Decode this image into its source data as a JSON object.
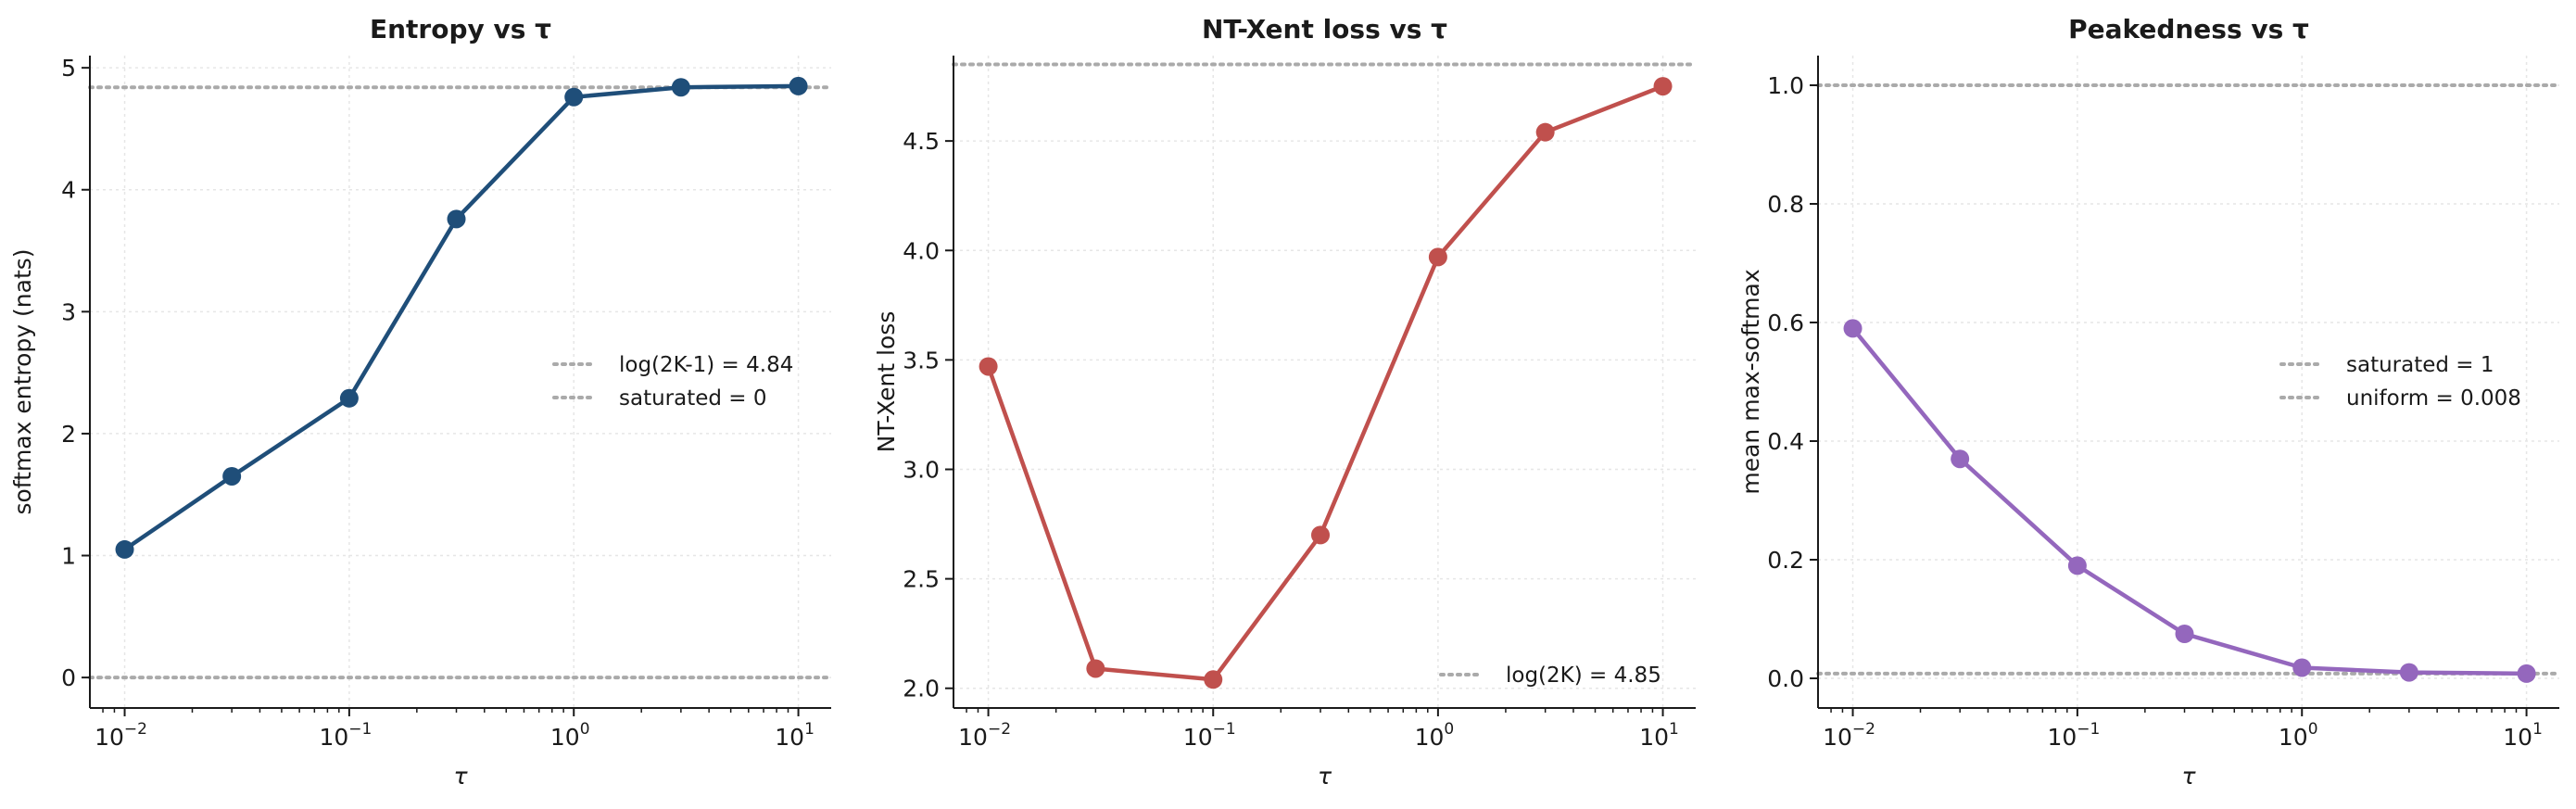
{
  "chart_data": [
    {
      "type": "line",
      "title": "Entropy vs τ",
      "xlabel": "τ",
      "ylabel": "softmax entropy (nats)",
      "x_scale": "log",
      "xlim": [
        0.007,
        14
      ],
      "ylim": [
        -0.25,
        5.1
      ],
      "xticks": [
        {
          "base": "10",
          "exp": "−2"
        },
        {
          "base": "10",
          "exp": "−1"
        },
        {
          "base": "10",
          "exp": "0"
        },
        {
          "base": "10",
          "exp": "1"
        }
      ],
      "xtick_values": [
        0.01,
        0.1,
        1,
        10
      ],
      "yticks": [
        "0",
        "1",
        "2",
        "3",
        "4",
        "5"
      ],
      "ytick_values": [
        0,
        1,
        2,
        3,
        4,
        5
      ],
      "grid": true,
      "legend_position": "center-right",
      "series": [
        {
          "color": "#1f4e79",
          "x": [
            0.01,
            0.03,
            0.1,
            0.3,
            1,
            3,
            10
          ],
          "y": [
            1.05,
            1.65,
            2.29,
            3.76,
            4.76,
            4.84,
            4.85
          ]
        }
      ],
      "reference_lines": [
        {
          "label": "log(2K-1) = 4.84",
          "y": 4.84,
          "color": "#aaaaaa"
        },
        {
          "label": "saturated = 0",
          "y": 0,
          "color": "#aaaaaa"
        }
      ]
    },
    {
      "type": "line",
      "title": "NT-Xent loss vs τ",
      "xlabel": "τ",
      "ylabel": "NT-Xent loss",
      "x_scale": "log",
      "xlim": [
        0.007,
        14
      ],
      "ylim": [
        1.91,
        4.89
      ],
      "xticks": [
        {
          "base": "10",
          "exp": "−2"
        },
        {
          "base": "10",
          "exp": "−1"
        },
        {
          "base": "10",
          "exp": "0"
        },
        {
          "base": "10",
          "exp": "1"
        }
      ],
      "xtick_values": [
        0.01,
        0.1,
        1,
        10
      ],
      "yticks": [
        "2.0",
        "2.5",
        "3.0",
        "3.5",
        "4.0",
        "4.5"
      ],
      "ytick_values": [
        2.0,
        2.5,
        3.0,
        3.5,
        4.0,
        4.5
      ],
      "grid": true,
      "legend_position": "bottom-right",
      "series": [
        {
          "color": "#c0504d",
          "x": [
            0.01,
            0.03,
            0.1,
            0.3,
            1,
            3,
            10
          ],
          "y": [
            3.47,
            2.09,
            2.04,
            2.7,
            3.97,
            4.54,
            4.75
          ]
        }
      ],
      "reference_lines": [
        {
          "label": "log(2K) = 4.85",
          "y": 4.85,
          "color": "#aaaaaa"
        }
      ]
    },
    {
      "type": "line",
      "title": "Peakedness vs τ",
      "xlabel": "τ",
      "ylabel": "mean max-softmax",
      "x_scale": "log",
      "xlim": [
        0.007,
        14
      ],
      "ylim": [
        -0.05,
        1.05
      ],
      "xticks": [
        {
          "base": "10",
          "exp": "−2"
        },
        {
          "base": "10",
          "exp": "−1"
        },
        {
          "base": "10",
          "exp": "0"
        },
        {
          "base": "10",
          "exp": "1"
        }
      ],
      "xtick_values": [
        0.01,
        0.1,
        1,
        10
      ],
      "yticks": [
        "0.0",
        "0.2",
        "0.4",
        "0.6",
        "0.8",
        "1.0"
      ],
      "ytick_values": [
        0,
        0.2,
        0.4,
        0.6,
        0.8,
        1.0
      ],
      "grid": true,
      "legend_position": "center-right",
      "series": [
        {
          "color": "#9467bd",
          "x": [
            0.01,
            0.03,
            0.1,
            0.3,
            1,
            3,
            10
          ],
          "y": [
            0.59,
            0.37,
            0.19,
            0.075,
            0.018,
            0.01,
            0.008
          ]
        }
      ],
      "reference_lines": [
        {
          "label": "saturated = 1",
          "y": 1,
          "color": "#aaaaaa"
        },
        {
          "label": "uniform = 0.008",
          "y": 0.008,
          "color": "#aaaaaa"
        }
      ]
    }
  ]
}
